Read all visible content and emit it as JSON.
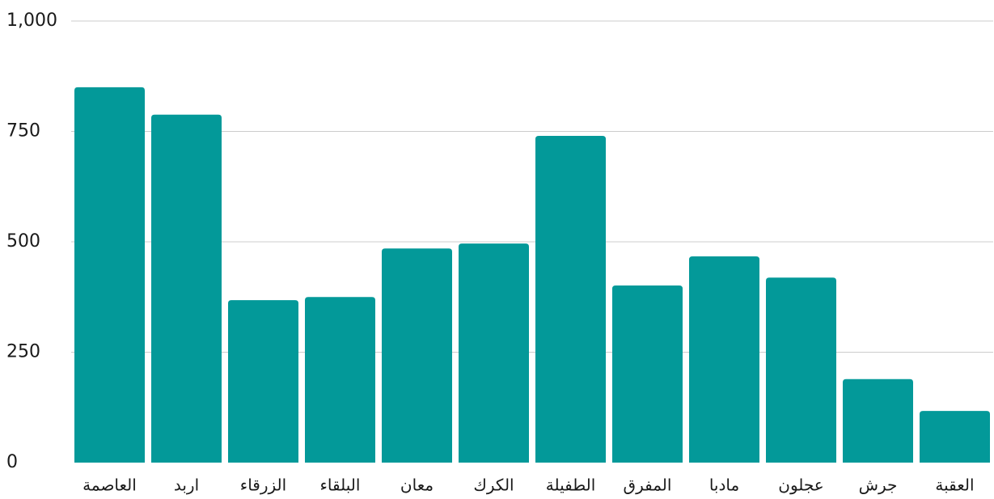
{
  "chart_data": {
    "type": "bar",
    "categories": [
      "العاصمة",
      "اربد",
      "الزرقاء",
      "البلقاء",
      "معان",
      "الكرك",
      "الطفيلة",
      "المفرق",
      "مادبا",
      "عجلون",
      "جرش",
      "العقبة"
    ],
    "values": [
      850,
      788,
      368,
      375,
      485,
      496,
      740,
      401,
      467,
      419,
      189,
      117
    ],
    "color": "#039999",
    "ylim": [
      0,
      1000
    ],
    "yticks": [
      0,
      250,
      500,
      750,
      {
        "value": 1000,
        "label": "1,000"
      }
    ],
    "grid": true
  }
}
